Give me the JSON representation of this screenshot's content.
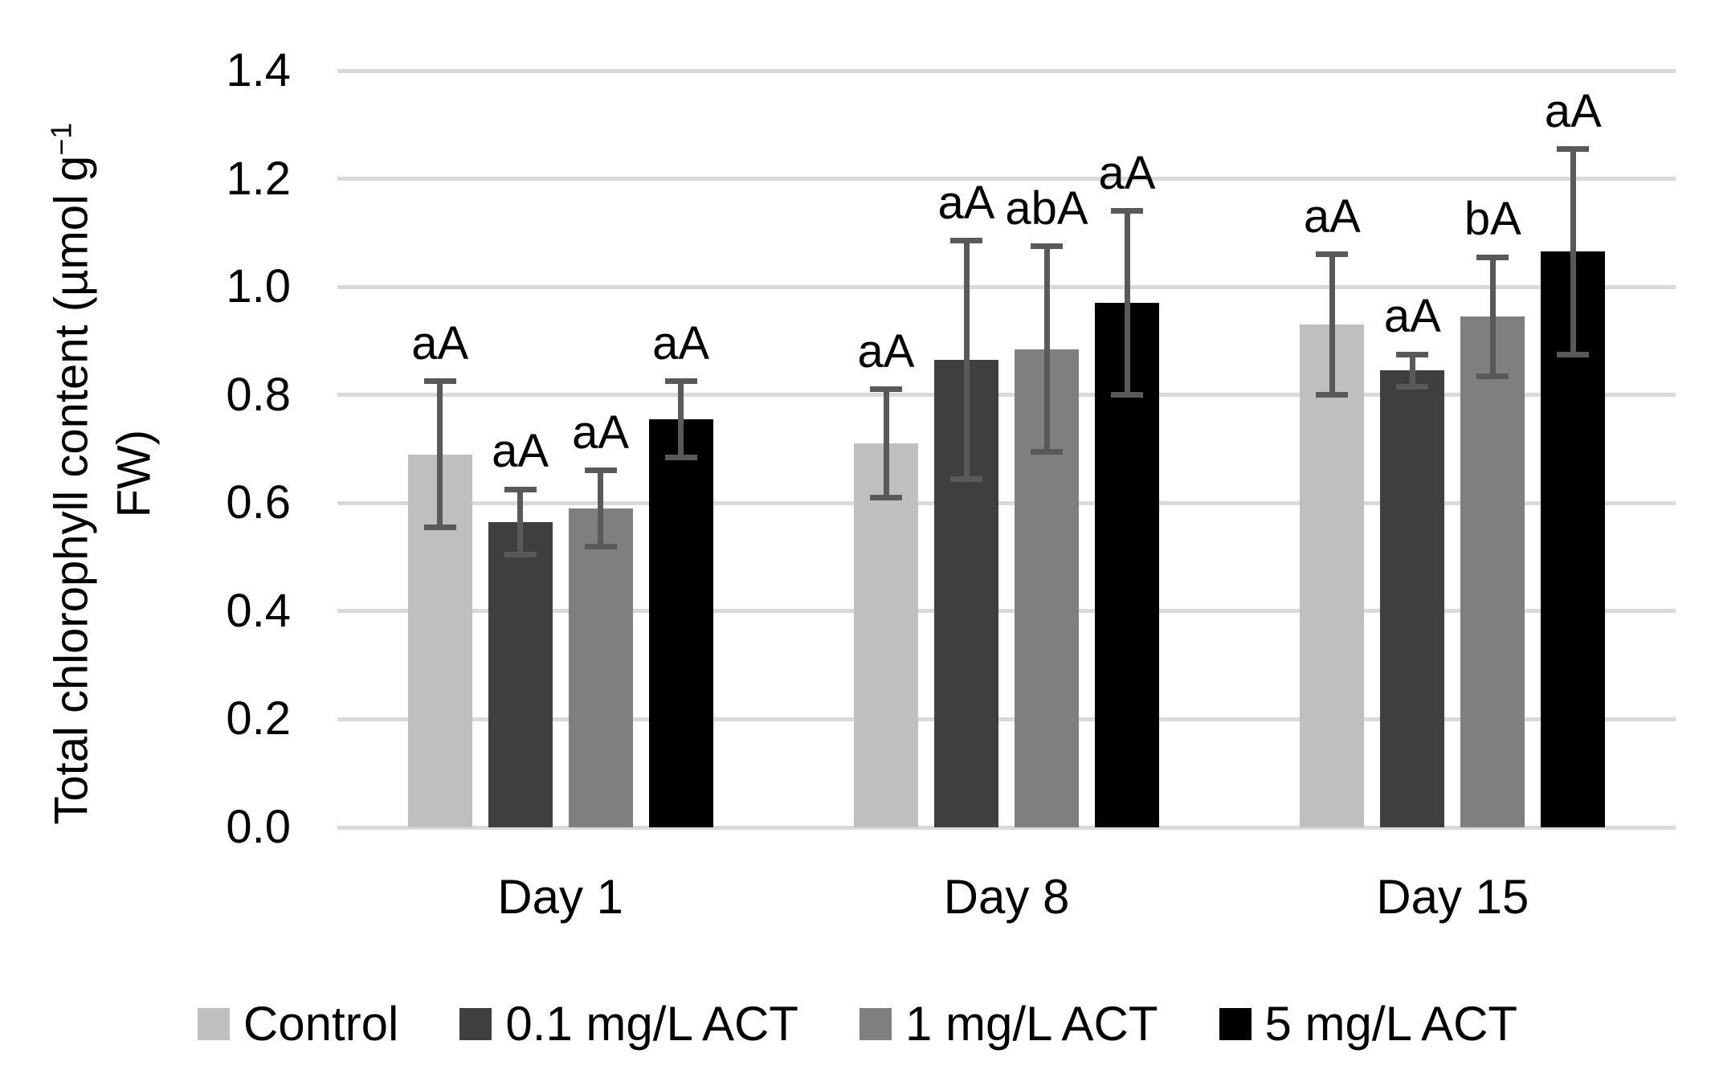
{
  "chart_data": {
    "type": "bar",
    "title": "",
    "ylabel_line1": "Total chlorophyll content (µmol g",
    "ylabel_sup": "−1",
    "ylabel_line2": "FW)",
    "ylabel_text": "Total chlorophyll content (µmol g−1 FW)",
    "categories": [
      "Day 1",
      "Day 8",
      "Day 15"
    ],
    "series": [
      {
        "name": "Control",
        "color": "#bfbfbf",
        "values": [
          0.69,
          0.71,
          0.93
        ],
        "errors": [
          0.135,
          0.1,
          0.13
        ],
        "sig_labels": [
          "aA",
          "aA",
          "aA"
        ]
      },
      {
        "name": "0.1 mg/L ACT",
        "color": "#3f3f3f",
        "values": [
          0.565,
          0.865,
          0.845
        ],
        "errors": [
          0.06,
          0.22,
          0.03
        ],
        "sig_labels": [
          "aA",
          "aA",
          "aA"
        ]
      },
      {
        "name": "1 mg/L ACT",
        "color": "#7f7f7f",
        "values": [
          0.59,
          0.885,
          0.945
        ],
        "errors": [
          0.07,
          0.19,
          0.11
        ],
        "sig_labels": [
          "aA",
          "abA",
          "bA"
        ]
      },
      {
        "name": "5 mg/L ACT",
        "color": "#000000",
        "values": [
          0.755,
          0.97,
          1.065
        ],
        "errors": [
          0.07,
          0.17,
          0.19
        ],
        "sig_labels": [
          "aA",
          "aA",
          "aA"
        ]
      }
    ],
    "ylim": [
      0.0,
      1.4
    ],
    "ytick_step": 0.2,
    "ytick_labels": [
      "0.0",
      "0.2",
      "0.4",
      "0.6",
      "0.8",
      "1.0",
      "1.2",
      "1.4"
    ],
    "grid": true,
    "gridline_color": "#d9d9d9",
    "error_bar_color": "#595959",
    "legend_position": "bottom"
  }
}
